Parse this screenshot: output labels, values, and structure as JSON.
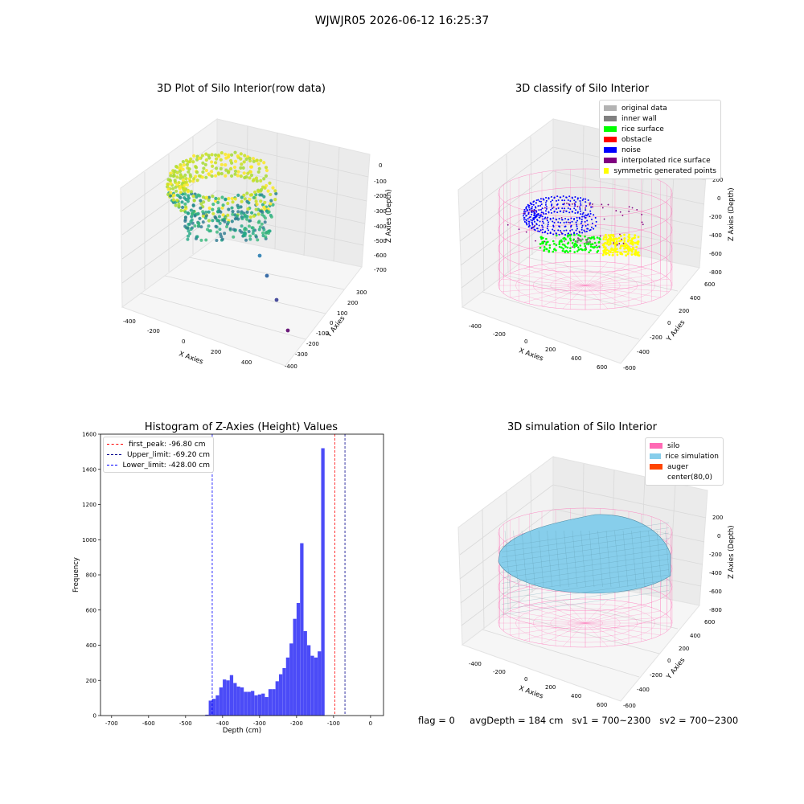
{
  "suptitle": "WJWJR05 2026-06-12 16:25:37",
  "panels": {
    "raw": {
      "title": "3D Plot of Silo Interior(row data)",
      "xlabel": "X Axies",
      "ylabel": "Y Axies",
      "zlabel": "Z Axies (Depth)",
      "xticks": [
        "-400",
        "-200",
        "0",
        "200",
        "400"
      ],
      "yticks": [
        "300",
        "200",
        "100",
        "0",
        "-100",
        "-200",
        "-300",
        "-400"
      ],
      "zticks": [
        "0",
        "-100",
        "-200",
        "-300",
        "-400",
        "-500",
        "-600",
        "-700"
      ]
    },
    "classify": {
      "title": "3D classify of Silo Interior",
      "xlabel": "X Axies",
      "ylabel": "Y Axies",
      "zlabel": "Z Axies (Depth)",
      "xticks": [
        "-400",
        "-200",
        "0",
        "200",
        "400",
        "600"
      ],
      "yticks": [
        "600",
        "400",
        "200",
        "0",
        "-200",
        "-400",
        "-600"
      ],
      "zticks": [
        "200",
        "0",
        "-200",
        "-400",
        "-600",
        "-800"
      ],
      "legend": [
        {
          "label": "original data",
          "color": "#b3b3b3"
        },
        {
          "label": "inner wall",
          "color": "#808080"
        },
        {
          "label": "rice surface",
          "color": "#00ff00"
        },
        {
          "label": "obstacle",
          "color": "#ff0000"
        },
        {
          "label": "noise",
          "color": "#0000ff"
        },
        {
          "label": "interpolated rice surface",
          "color": "#800080"
        },
        {
          "label": "symmetric generated points",
          "color": "#ffff00"
        }
      ]
    },
    "histogram": {
      "title": "Histogram of Z-Axies (Height) Values",
      "xlabel": "Depth (cm)",
      "ylabel": "Frequency",
      "xticks": [
        "-700",
        "-600",
        "-500",
        "-400",
        "-300",
        "-200",
        "-100",
        "0"
      ],
      "yticks": [
        "0",
        "200",
        "400",
        "600",
        "800",
        "1000",
        "1200",
        "1400",
        "1600"
      ],
      "legend": [
        {
          "label": "first_peak: -96.80 cm",
          "color": "#ff0000"
        },
        {
          "label": "Upper_limit: -69.20 cm",
          "color": "#00008b"
        },
        {
          "label": "Lower_limit: -428.00 cm",
          "color": "#0000ff"
        }
      ]
    },
    "simulation": {
      "title": "3D simulation of Silo Interior",
      "xlabel": "X Axies",
      "ylabel": "Y Axies",
      "zlabel": "Z Axies (Depth)",
      "xticks": [
        "-400",
        "-200",
        "0",
        "200",
        "400",
        "600"
      ],
      "yticks": [
        "600",
        "400",
        "200",
        "0",
        "-200",
        "-400",
        "-600"
      ],
      "zticks": [
        "200",
        "0",
        "-200",
        "-400",
        "-600",
        "-800"
      ],
      "legend": [
        {
          "label": "silo",
          "color": "#ff69b4"
        },
        {
          "label": "rice simulation",
          "color": "#87ceeb"
        },
        {
          "label": "auger",
          "color": "#ff4500"
        },
        {
          "label": "center(80,0)",
          "color": "#ffffff"
        }
      ]
    }
  },
  "footer": {
    "flag": "flag = 0",
    "avg": "avgDepth = 184 cm",
    "sv1": "sv1 = 700~2300",
    "sv2": "sv2 = 700~2300"
  },
  "chart_data": [
    {
      "type": "bar",
      "title": "Histogram of Z-Axies (Height) Values",
      "xlabel": "Depth (cm)",
      "ylabel": "Frequency",
      "xlim": [
        -730,
        35
      ],
      "ylim": [
        0,
        1600
      ],
      "bin_width": 9.5,
      "bins": [
        {
          "x0": -447,
          "count": 5
        },
        {
          "x0": -437.5,
          "count": 85
        },
        {
          "x0": -428,
          "count": 95
        },
        {
          "x0": -418.5,
          "count": 115
        },
        {
          "x0": -409,
          "count": 160
        },
        {
          "x0": -399.5,
          "count": 205
        },
        {
          "x0": -390,
          "count": 200
        },
        {
          "x0": -380.5,
          "count": 230
        },
        {
          "x0": -371,
          "count": 185
        },
        {
          "x0": -361.5,
          "count": 165
        },
        {
          "x0": -352,
          "count": 160
        },
        {
          "x0": -342.5,
          "count": 135
        },
        {
          "x0": -333,
          "count": 135
        },
        {
          "x0": -323.5,
          "count": 140
        },
        {
          "x0": -314,
          "count": 115
        },
        {
          "x0": -304.5,
          "count": 120
        },
        {
          "x0": -295,
          "count": 125
        },
        {
          "x0": -285.5,
          "count": 105
        },
        {
          "x0": -276,
          "count": 150
        },
        {
          "x0": -266.5,
          "count": 150
        },
        {
          "x0": -257,
          "count": 195
        },
        {
          "x0": -247.5,
          "count": 235
        },
        {
          "x0": -238,
          "count": 270
        },
        {
          "x0": -228.5,
          "count": 330
        },
        {
          "x0": -219,
          "count": 410
        },
        {
          "x0": -209.5,
          "count": 550
        },
        {
          "x0": -200,
          "count": 640
        },
        {
          "x0": -190.5,
          "count": 980
        },
        {
          "x0": -181,
          "count": 480
        },
        {
          "x0": -171.5,
          "count": 400
        },
        {
          "x0": -162,
          "count": 340
        },
        {
          "x0": -152.5,
          "count": 330
        },
        {
          "x0": -143,
          "count": 365
        },
        {
          "x0": -133.5,
          "count": 1520
        }
      ],
      "vlines": [
        {
          "x": -96.8,
          "label": "first_peak: -96.80 cm",
          "color": "#ff0000"
        },
        {
          "x": -69.2,
          "label": "Upper_limit: -69.20 cm",
          "color": "#00008b"
        },
        {
          "x": -428.0,
          "label": "Lower_limit: -428.00 cm",
          "color": "#0000ff"
        }
      ],
      "bar_color": "#4b4bf7"
    }
  ]
}
